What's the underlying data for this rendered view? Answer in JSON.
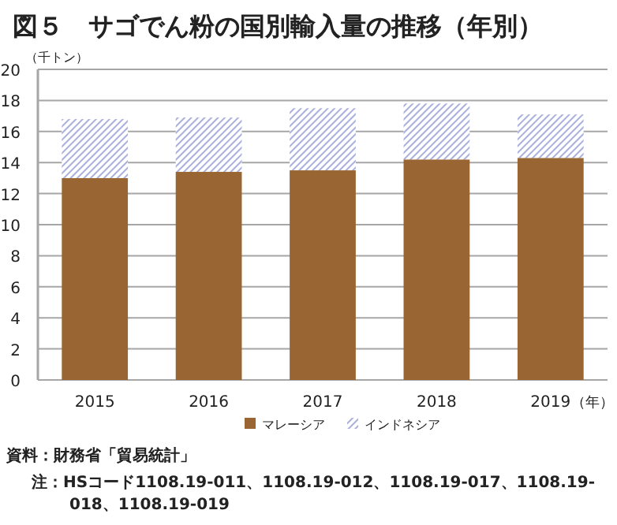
{
  "chart_data": {
    "type": "bar",
    "title": "図５　サゴでん粉の国別輸入量の推移（年別）",
    "ylabel": "（千トン）",
    "xlabel": "（年）",
    "categories": [
      "2015",
      "2016",
      "2017",
      "2018",
      "2019"
    ],
    "stacked": true,
    "series": [
      {
        "name": "マレーシア",
        "color": "#996633",
        "values": [
          13.0,
          13.4,
          13.5,
          14.2,
          14.3
        ]
      },
      {
        "name": "インドネシア",
        "color": "#aab0dd",
        "values": [
          3.8,
          3.5,
          4.0,
          3.6,
          2.8
        ]
      }
    ],
    "ylim": [
      0,
      20
    ],
    "yticks": [
      0,
      2,
      4,
      6,
      8,
      10,
      12,
      14,
      16,
      18,
      20
    ],
    "grid": "y",
    "legend": "bottom",
    "annotations": [
      "資料：財務省「貿易統計」",
      "注：HSコード1108.19-011、1108.19-012、1108.19-017、1108.19-018、1108.19-019"
    ]
  }
}
